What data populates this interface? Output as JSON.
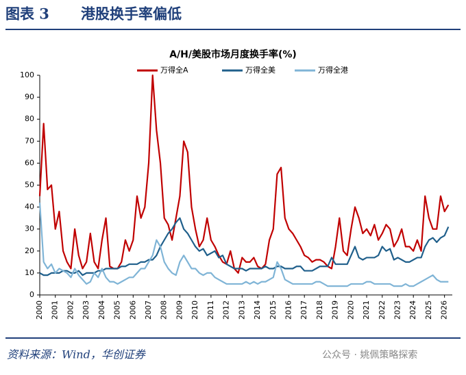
{
  "header": {
    "label": "图表 3",
    "title": "港股换手率偏低"
  },
  "chart_data": {
    "type": "line",
    "title": "A/H/美股市场月度换手率(%)",
    "x": [
      2000,
      2000.25,
      2000.5,
      2000.75,
      2001,
      2001.25,
      2001.5,
      2001.75,
      2002,
      2002.25,
      2002.5,
      2002.75,
      2003,
      2003.25,
      2003.5,
      2003.75,
      2004,
      2004.25,
      2004.5,
      2004.75,
      2005,
      2005.25,
      2005.5,
      2005.75,
      2006,
      2006.25,
      2006.5,
      2006.75,
      2007,
      2007.25,
      2007.5,
      2007.75,
      2008,
      2008.25,
      2008.5,
      2008.75,
      2009,
      2009.25,
      2009.5,
      2009.75,
      2010,
      2010.25,
      2010.5,
      2010.75,
      2011,
      2011.25,
      2011.5,
      2011.75,
      2012,
      2012.25,
      2012.5,
      2012.75,
      2013,
      2013.25,
      2013.5,
      2013.75,
      2014,
      2014.25,
      2014.5,
      2014.75,
      2015,
      2015.25,
      2015.5,
      2015.75,
      2016,
      2016.25,
      2016.5,
      2016.75,
      2017,
      2017.25,
      2017.5,
      2017.75,
      2018,
      2018.25,
      2018.5,
      2018.75,
      2019,
      2019.25,
      2019.5,
      2019.75,
      2020,
      2020.25,
      2020.5,
      2020.75,
      2021,
      2021.25,
      2021.5,
      2021.75,
      2022,
      2022.25,
      2022.5,
      2022.75,
      2023,
      2023.25,
      2023.5,
      2023.75,
      2024,
      2024.25,
      2024.5,
      2024.75,
      2025,
      2025.25,
      2025.5,
      2025.75,
      2026,
      2026.25
    ],
    "series": [
      {
        "name": "万得全A",
        "color": "#c00000",
        "values": [
          45,
          78,
          48,
          50,
          30,
          38,
          20,
          15,
          12,
          30,
          18,
          12,
          15,
          28,
          15,
          12,
          25,
          35,
          13,
          12,
          12,
          15,
          25,
          20,
          25,
          45,
          35,
          40,
          60,
          100,
          75,
          60,
          35,
          32,
          25,
          35,
          45,
          70,
          65,
          40,
          30,
          22,
          25,
          35,
          25,
          22,
          18,
          15,
          14,
          20,
          12,
          10,
          17,
          15,
          15,
          17,
          13,
          12,
          14,
          25,
          30,
          55,
          58,
          35,
          30,
          28,
          25,
          22,
          18,
          17,
          15,
          16,
          16,
          15,
          13,
          12,
          22,
          35,
          20,
          18,
          30,
          40,
          35,
          28,
          30,
          27,
          32,
          25,
          28,
          32,
          30,
          22,
          25,
          30,
          22,
          22,
          20,
          25,
          20,
          45,
          35,
          30,
          30,
          45,
          38,
          41
        ]
      },
      {
        "name": "万得全美",
        "color": "#1f5f8b",
        "values": [
          10,
          9,
          9,
          10,
          10,
          10,
          11,
          11,
          10,
          10,
          11,
          9,
          10,
          10,
          10,
          11,
          11,
          12,
          12,
          12,
          12,
          13,
          13,
          14,
          14,
          14,
          15,
          15,
          16,
          16,
          18,
          22,
          25,
          28,
          30,
          33,
          35,
          30,
          28,
          25,
          22,
          20,
          21,
          18,
          19,
          20,
          17,
          18,
          14,
          13,
          12,
          12,
          12,
          11,
          12,
          12,
          12,
          12,
          13,
          12,
          12,
          13,
          13,
          12,
          12,
          12,
          13,
          13,
          11,
          11,
          11,
          12,
          13,
          13,
          13,
          17,
          14,
          14,
          14,
          14,
          18,
          22,
          17,
          16,
          17,
          17,
          17,
          18,
          22,
          20,
          21,
          16,
          17,
          16,
          15,
          15,
          16,
          17,
          17,
          22,
          25,
          26,
          24,
          26,
          27,
          31
        ]
      },
      {
        "name": "万得全港",
        "color": "#7fb4d6",
        "values": [
          42,
          15,
          12,
          14,
          10,
          12,
          11,
          10,
          8,
          12,
          9,
          7,
          5,
          6,
          10,
          8,
          12,
          8,
          6,
          6,
          5,
          6,
          7,
          8,
          8,
          10,
          12,
          12,
          15,
          18,
          25,
          22,
          15,
          12,
          10,
          9,
          15,
          18,
          15,
          12,
          12,
          10,
          9,
          10,
          10,
          8,
          7,
          6,
          5,
          5,
          5,
          5,
          5,
          6,
          5,
          6,
          5,
          6,
          6,
          7,
          8,
          15,
          12,
          7,
          6,
          5,
          5,
          5,
          5,
          5,
          5,
          6,
          6,
          5,
          4,
          4,
          4,
          4,
          4,
          4,
          5,
          5,
          5,
          5,
          6,
          6,
          5,
          5,
          5,
          5,
          5,
          4,
          4,
          4,
          5,
          4,
          4,
          5,
          6,
          7,
          8,
          9,
          7,
          6,
          6,
          6
        ]
      }
    ],
    "xlim": [
      2000,
      2026.5
    ],
    "xticks": [
      2000,
      2001,
      2002,
      2003,
      2004,
      2005,
      2006,
      2007,
      2008,
      2009,
      2010,
      2011,
      2012,
      2013,
      2014,
      2015,
      2016,
      2017,
      2018,
      2019,
      2020,
      2021,
      2022,
      2023,
      2024,
      2025,
      2026
    ],
    "ylim": [
      0,
      100
    ],
    "yticks": [
      0,
      10,
      20,
      30,
      40,
      50,
      60,
      70,
      80,
      90,
      100
    ]
  },
  "footer": {
    "source": "资料来源：Wind，华创证券",
    "watermark": "公众号 · 姚佩策略探索"
  }
}
